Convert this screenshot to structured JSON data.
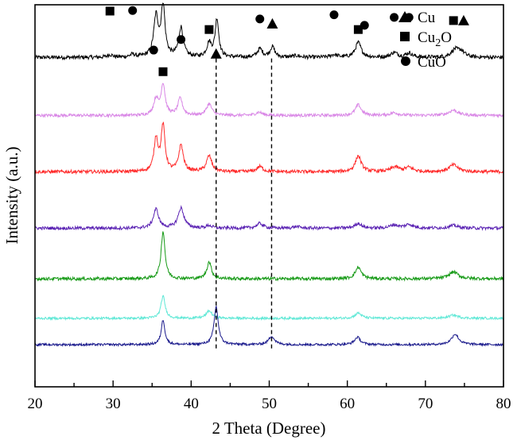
{
  "chart_data": {
    "type": "line",
    "xlabel": "2 Theta (Degree)",
    "ylabel": "Intensity (a.u.)",
    "xlim": [
      20,
      80
    ],
    "xticks": [
      "20",
      "30",
      "40",
      "50",
      "60",
      "70",
      "80"
    ],
    "grid": false,
    "legend_position": "top-right",
    "legend": [
      {
        "symbol": "triangle",
        "label": "Cu"
      },
      {
        "symbol": "square",
        "label_main": "Cu",
        "label_sub": "2",
        "label_tail": "O"
      },
      {
        "symbol": "circle",
        "label": "CuO"
      }
    ],
    "reference_lines_x": [
      43.2,
      50.3
    ],
    "series": [
      {
        "color": "#000000",
        "baseline": 1.0,
        "noise": 0.038,
        "peaks": [
          [
            29.6,
            0.05,
            0.4
          ],
          [
            32.5,
            0.05,
            0.4
          ],
          [
            35.5,
            0.76,
            0.35
          ],
          [
            36.4,
            0.95,
            0.3
          ],
          [
            38.7,
            0.56,
            0.35
          ],
          [
            42.3,
            0.26,
            0.35
          ],
          [
            43.3,
            0.72,
            0.28
          ],
          [
            48.8,
            0.16,
            0.4
          ],
          [
            50.4,
            0.2,
            0.35
          ],
          [
            53.5,
            0.03,
            0.5
          ],
          [
            58.3,
            0.05,
            0.5
          ],
          [
            61.4,
            0.28,
            0.45
          ],
          [
            66.0,
            0.09,
            0.5
          ],
          [
            67.9,
            0.08,
            0.5
          ],
          [
            73.8,
            0.14,
            0.6
          ],
          [
            74.6,
            0.1,
            0.5
          ]
        ]
      },
      {
        "color": "#d987e6",
        "baseline": 2.1,
        "noise": 0.028,
        "peaks": [
          [
            35.5,
            0.3,
            0.35
          ],
          [
            36.4,
            0.58,
            0.32
          ],
          [
            38.6,
            0.32,
            0.35
          ],
          [
            42.3,
            0.22,
            0.4
          ],
          [
            48.7,
            0.06,
            0.5
          ],
          [
            61.4,
            0.2,
            0.45
          ],
          [
            66.0,
            0.05,
            0.6
          ],
          [
            73.6,
            0.1,
            0.7
          ]
        ]
      },
      {
        "color": "#ff2a2a",
        "baseline": 3.17,
        "noise": 0.032,
        "peaks": [
          [
            35.5,
            0.62,
            0.3
          ],
          [
            36.4,
            0.86,
            0.3
          ],
          [
            38.7,
            0.5,
            0.35
          ],
          [
            42.3,
            0.3,
            0.4
          ],
          [
            48.8,
            0.1,
            0.45
          ],
          [
            61.4,
            0.3,
            0.45
          ],
          [
            66.1,
            0.09,
            0.6
          ],
          [
            67.9,
            0.08,
            0.6
          ],
          [
            73.6,
            0.13,
            0.7
          ]
        ]
      },
      {
        "color": "#5a22b3",
        "baseline": 4.24,
        "noise": 0.03,
        "peaks": [
          [
            35.5,
            0.36,
            0.4
          ],
          [
            38.7,
            0.38,
            0.45
          ],
          [
            42.3,
            0.05,
            0.4
          ],
          [
            48.8,
            0.09,
            0.5
          ],
          [
            53.5,
            0.03,
            0.5
          ],
          [
            61.4,
            0.09,
            0.5
          ],
          [
            66.0,
            0.06,
            0.6
          ],
          [
            67.9,
            0.07,
            0.6
          ],
          [
            73.6,
            0.05,
            0.7
          ]
        ]
      },
      {
        "color": "#169a16",
        "baseline": 5.2,
        "noise": 0.03,
        "peaks": [
          [
            36.4,
            0.9,
            0.3
          ],
          [
            42.3,
            0.32,
            0.35
          ],
          [
            61.4,
            0.22,
            0.45
          ],
          [
            73.6,
            0.13,
            0.7
          ]
        ]
      },
      {
        "color": "#5fe8d6",
        "baseline": 5.95,
        "noise": 0.022,
        "peaks": [
          [
            36.4,
            0.42,
            0.32
          ],
          [
            42.3,
            0.14,
            0.45
          ],
          [
            61.4,
            0.1,
            0.5
          ],
          [
            73.6,
            0.06,
            0.7
          ]
        ]
      },
      {
        "color": "#1a1a8c",
        "baseline": 6.45,
        "noise": 0.022,
        "peaks": [
          [
            36.4,
            0.47,
            0.28
          ],
          [
            43.2,
            0.72,
            0.32
          ],
          [
            50.3,
            0.16,
            0.45
          ],
          [
            61.3,
            0.14,
            0.45
          ],
          [
            73.8,
            0.2,
            0.55
          ]
        ]
      }
    ],
    "markers": [
      {
        "symbol": "square",
        "x": 29.6,
        "y": 0.12
      },
      {
        "symbol": "circle",
        "x": 32.5,
        "y": 0.11
      },
      {
        "symbol": "circle",
        "x": 35.2,
        "y": 0.86
      },
      {
        "symbol": "square",
        "x": 36.4,
        "y": 1.27
      },
      {
        "symbol": "circle",
        "x": 38.7,
        "y": 0.66
      },
      {
        "symbol": "square",
        "x": 42.3,
        "y": 0.47
      },
      {
        "symbol": "triangle",
        "x": 43.2,
        "y": 0.93
      },
      {
        "symbol": "circle",
        "x": 48.8,
        "y": 0.27
      },
      {
        "symbol": "triangle",
        "x": 50.4,
        "y": 0.36
      },
      {
        "symbol": "circle",
        "x": 58.3,
        "y": 0.19
      },
      {
        "symbol": "square",
        "x": 61.4,
        "y": 0.47
      },
      {
        "symbol": "circle",
        "x": 62.2,
        "y": 0.39
      },
      {
        "symbol": "circle",
        "x": 66.0,
        "y": 0.24
      },
      {
        "symbol": "circle",
        "x": 67.9,
        "y": 0.24
      },
      {
        "symbol": "square",
        "x": 73.6,
        "y": 0.3
      },
      {
        "symbol": "triangle",
        "x": 74.9,
        "y": 0.3
      }
    ]
  }
}
